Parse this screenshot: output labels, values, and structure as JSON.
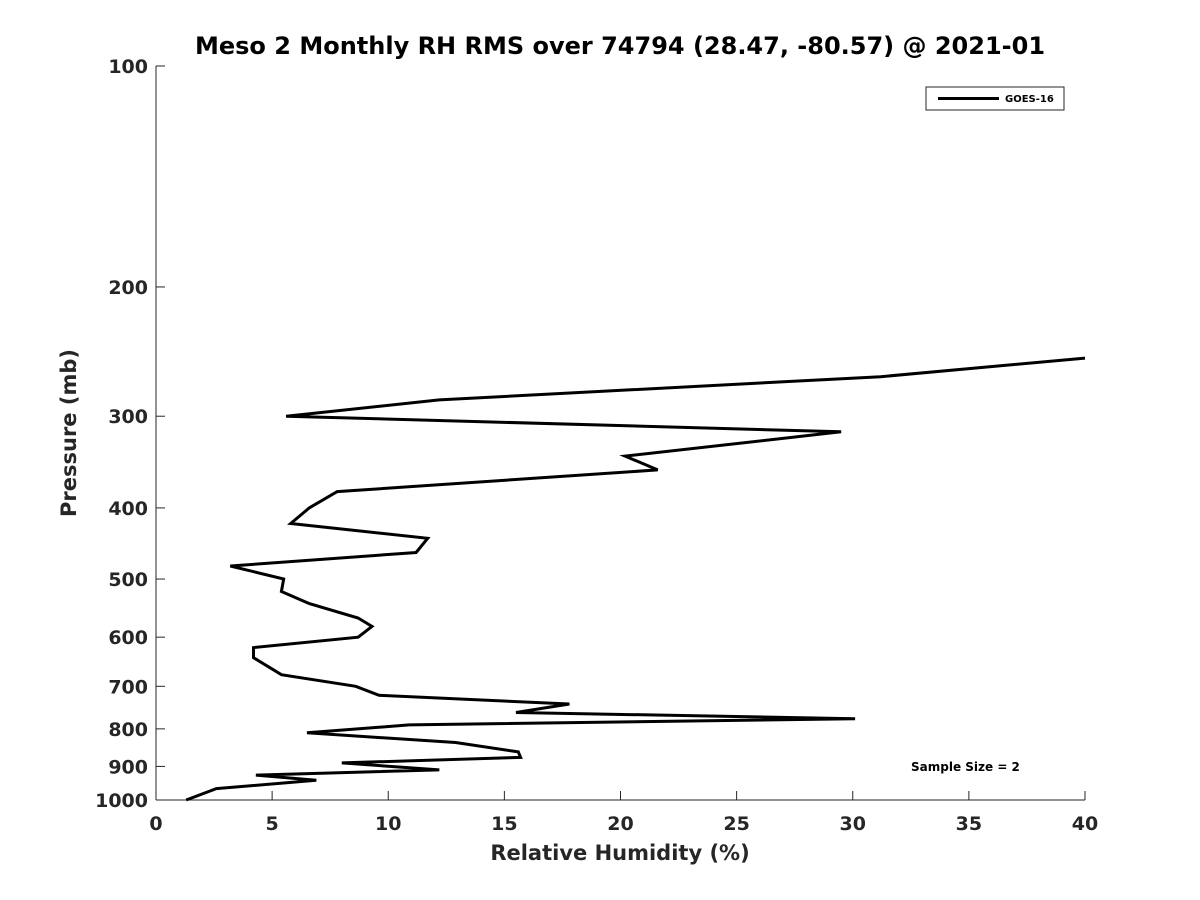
{
  "chart_data": {
    "type": "line",
    "title": "Meso 2 Monthly RH RMS over 74794 (28.47, -80.57) @ 2021-01",
    "xlabel": "Relative Humidity (%)",
    "ylabel": "Pressure (mb)",
    "xlim": [
      0,
      40
    ],
    "ylim": [
      100,
      1000
    ],
    "yscale": "log",
    "y_reversed": true,
    "xticks": [
      0,
      5,
      10,
      15,
      20,
      25,
      30,
      35,
      40
    ],
    "xtick_labels": [
      "0",
      "5",
      "10",
      "15",
      "20",
      "25",
      "30",
      "35",
      "40"
    ],
    "yticks": [
      100,
      200,
      300,
      400,
      500,
      600,
      700,
      800,
      900,
      1000
    ],
    "ytick_labels": [
      "100",
      "200",
      "300",
      "400",
      "500",
      "600",
      "700",
      "800",
      "900",
      "1000"
    ],
    "grid": false,
    "legend_position": "top-right",
    "annotation": "Sample Size = 2",
    "series": [
      {
        "name": "GOES-16",
        "color": "#000000",
        "points": [
          [
            40.0,
            250
          ],
          [
            31.2,
            265
          ],
          [
            12.2,
            285
          ],
          [
            5.6,
            300
          ],
          [
            29.5,
            315
          ],
          [
            20.2,
            340
          ],
          [
            21.6,
            355
          ],
          [
            7.8,
            380
          ],
          [
            6.6,
            400
          ],
          [
            5.8,
            420
          ],
          [
            11.7,
            440
          ],
          [
            11.2,
            460
          ],
          [
            3.2,
            480
          ],
          [
            5.5,
            500
          ],
          [
            5.4,
            520
          ],
          [
            6.6,
            540
          ],
          [
            8.7,
            565
          ],
          [
            9.3,
            580
          ],
          [
            8.7,
            600
          ],
          [
            4.2,
            620
          ],
          [
            4.2,
            640
          ],
          [
            5.4,
            675
          ],
          [
            8.6,
            700
          ],
          [
            9.6,
            720
          ],
          [
            17.8,
            740
          ],
          [
            15.5,
            760
          ],
          [
            30.1,
            775
          ],
          [
            10.9,
            790
          ],
          [
            6.5,
            810
          ],
          [
            12.9,
            835
          ],
          [
            15.6,
            860
          ],
          [
            15.7,
            875
          ],
          [
            8.0,
            890
          ],
          [
            12.2,
            910
          ],
          [
            4.3,
            925
          ],
          [
            6.9,
            940
          ],
          [
            2.6,
            965
          ],
          [
            1.3,
            1000
          ]
        ]
      }
    ]
  }
}
